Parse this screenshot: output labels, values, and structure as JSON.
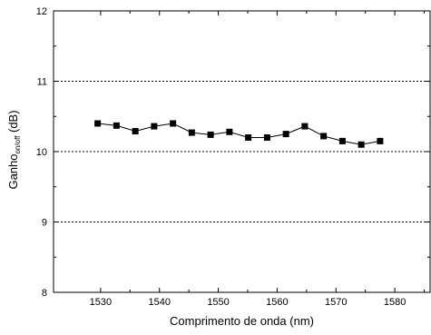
{
  "chart_data": {
    "type": "line",
    "title": "",
    "xlabel": "Comprimento de onda (nm)",
    "ylabel": {
      "main": "Ganho",
      "subscript": "on/off",
      "unit": " (dB)"
    },
    "xlim": [
      1522,
      1586
    ],
    "ylim": [
      8,
      12
    ],
    "xticks": [
      1530,
      1540,
      1550,
      1560,
      1570,
      1580
    ],
    "yticks": [
      8,
      9,
      10,
      11,
      12
    ],
    "grid": {
      "horizontal_dotted_at": [
        9,
        10,
        11
      ],
      "vertical": false
    },
    "legend": "none",
    "series": [
      {
        "marker": "filled-square",
        "color": "#000000",
        "x": [
          1529.5,
          1532.7,
          1535.9,
          1539.1,
          1542.3,
          1545.5,
          1548.7,
          1551.9,
          1555.1,
          1558.3,
          1561.5,
          1564.7,
          1567.9,
          1571.1,
          1574.3,
          1577.5
        ],
        "y": [
          10.4,
          10.37,
          10.29,
          10.36,
          10.4,
          10.27,
          10.24,
          10.28,
          10.2,
          10.2,
          10.25,
          10.36,
          10.22,
          10.15,
          10.1,
          10.15
        ]
      }
    ]
  }
}
